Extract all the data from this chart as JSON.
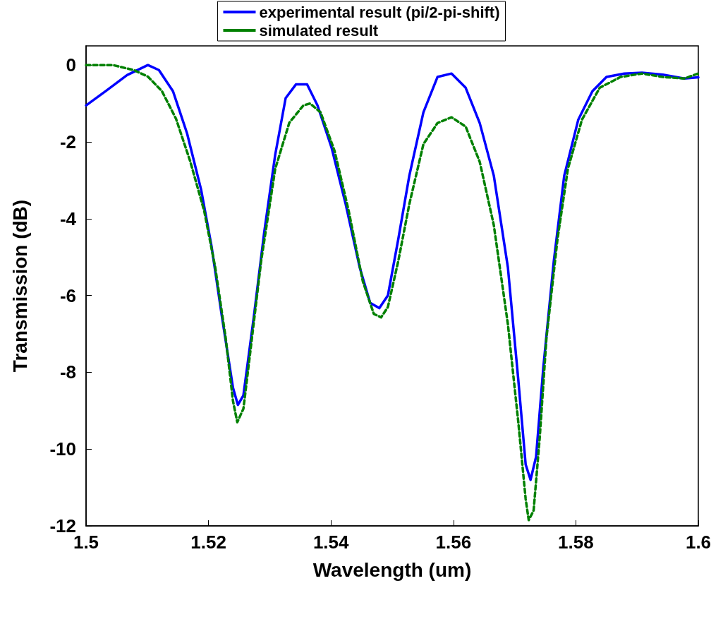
{
  "chart_data": {
    "type": "line",
    "xlabel": "Wavelength (um)",
    "ylabel": "Transmission (dB)",
    "xlim": [
      1.5,
      1.6
    ],
    "xticks": [
      1.5,
      1.52,
      1.54,
      1.56,
      1.58,
      1.6
    ],
    "ylim": [
      -12,
      0.5
    ],
    "yticks": [
      -12,
      -10,
      -8,
      -6,
      -4,
      -2,
      0
    ],
    "grid": false,
    "legend": "top",
    "marker": "none",
    "series": [
      {
        "name": "experimental result (pi/2-pi-shift)",
        "color": "#0000ff",
        "line_style": "solid",
        "x": [
          1.5,
          1.5032,
          1.5067,
          1.5101,
          1.5119,
          1.5142,
          1.5165,
          1.5188,
          1.5205,
          1.5222,
          1.524,
          1.5248,
          1.5257,
          1.5274,
          1.5291,
          1.5309,
          1.5326,
          1.5343,
          1.5361,
          1.5378,
          1.5401,
          1.5424,
          1.5447,
          1.5464,
          1.5479,
          1.5493,
          1.551,
          1.5528,
          1.5551,
          1.5574,
          1.5597,
          1.562,
          1.5643,
          1.5666,
          1.5689,
          1.5706,
          1.5718,
          1.5726,
          1.5735,
          1.5747,
          1.5764,
          1.5781,
          1.5804,
          1.5827,
          1.585,
          1.5879,
          1.5908,
          1.5942,
          1.5977,
          1.6
        ],
        "values": [
          -1.05,
          -0.68,
          -0.26,
          0,
          -0.13,
          -0.68,
          -1.78,
          -3.25,
          -4.72,
          -6.56,
          -8.4,
          -8.85,
          -8.6,
          -6.56,
          -4.35,
          -2.33,
          -0.86,
          -0.5,
          -0.5,
          -1.05,
          -2.15,
          -3.62,
          -5.27,
          -6.19,
          -6.33,
          -6.0,
          -4.53,
          -2.88,
          -1.23,
          -0.31,
          -0.22,
          -0.59,
          -1.51,
          -2.88,
          -5.27,
          -8.2,
          -10.4,
          -10.8,
          -10.2,
          -7.85,
          -5.1,
          -2.88,
          -1.42,
          -0.68,
          -0.31,
          -0.22,
          -0.2,
          -0.25,
          -0.35,
          -0.32
        ]
      },
      {
        "name": "simulated result",
        "color": "#008000",
        "line_style": "dashed",
        "x": [
          1.5,
          1.5044,
          1.5078,
          1.5101,
          1.5124,
          1.5147,
          1.517,
          1.5193,
          1.5211,
          1.5228,
          1.524,
          1.5247,
          1.5257,
          1.5268,
          1.5286,
          1.5309,
          1.5332,
          1.5355,
          1.5366,
          1.5383,
          1.5406,
          1.5429,
          1.5452,
          1.547,
          1.5482,
          1.5493,
          1.551,
          1.5528,
          1.5551,
          1.5574,
          1.5597,
          1.562,
          1.5643,
          1.5666,
          1.5689,
          1.5706,
          1.5718,
          1.5723,
          1.5731,
          1.5741,
          1.5752,
          1.577,
          1.5787,
          1.581,
          1.5839,
          1.5873,
          1.5908,
          1.5942,
          1.5977,
          1.6
        ],
        "values": [
          0,
          0,
          -0.13,
          -0.3,
          -0.68,
          -1.4,
          -2.5,
          -3.8,
          -5.27,
          -7.1,
          -8.75,
          -9.3,
          -8.95,
          -7.5,
          -5.1,
          -2.7,
          -1.5,
          -1.05,
          -1.0,
          -1.23,
          -2.24,
          -3.8,
          -5.63,
          -6.48,
          -6.57,
          -6.3,
          -5.1,
          -3.62,
          -2.06,
          -1.51,
          -1.36,
          -1.6,
          -2.52,
          -4.17,
          -6.75,
          -9.3,
          -11.3,
          -11.85,
          -11.6,
          -9.7,
          -7.1,
          -4.53,
          -2.7,
          -1.42,
          -0.59,
          -0.31,
          -0.22,
          -0.31,
          -0.35,
          -0.22
        ]
      }
    ]
  }
}
